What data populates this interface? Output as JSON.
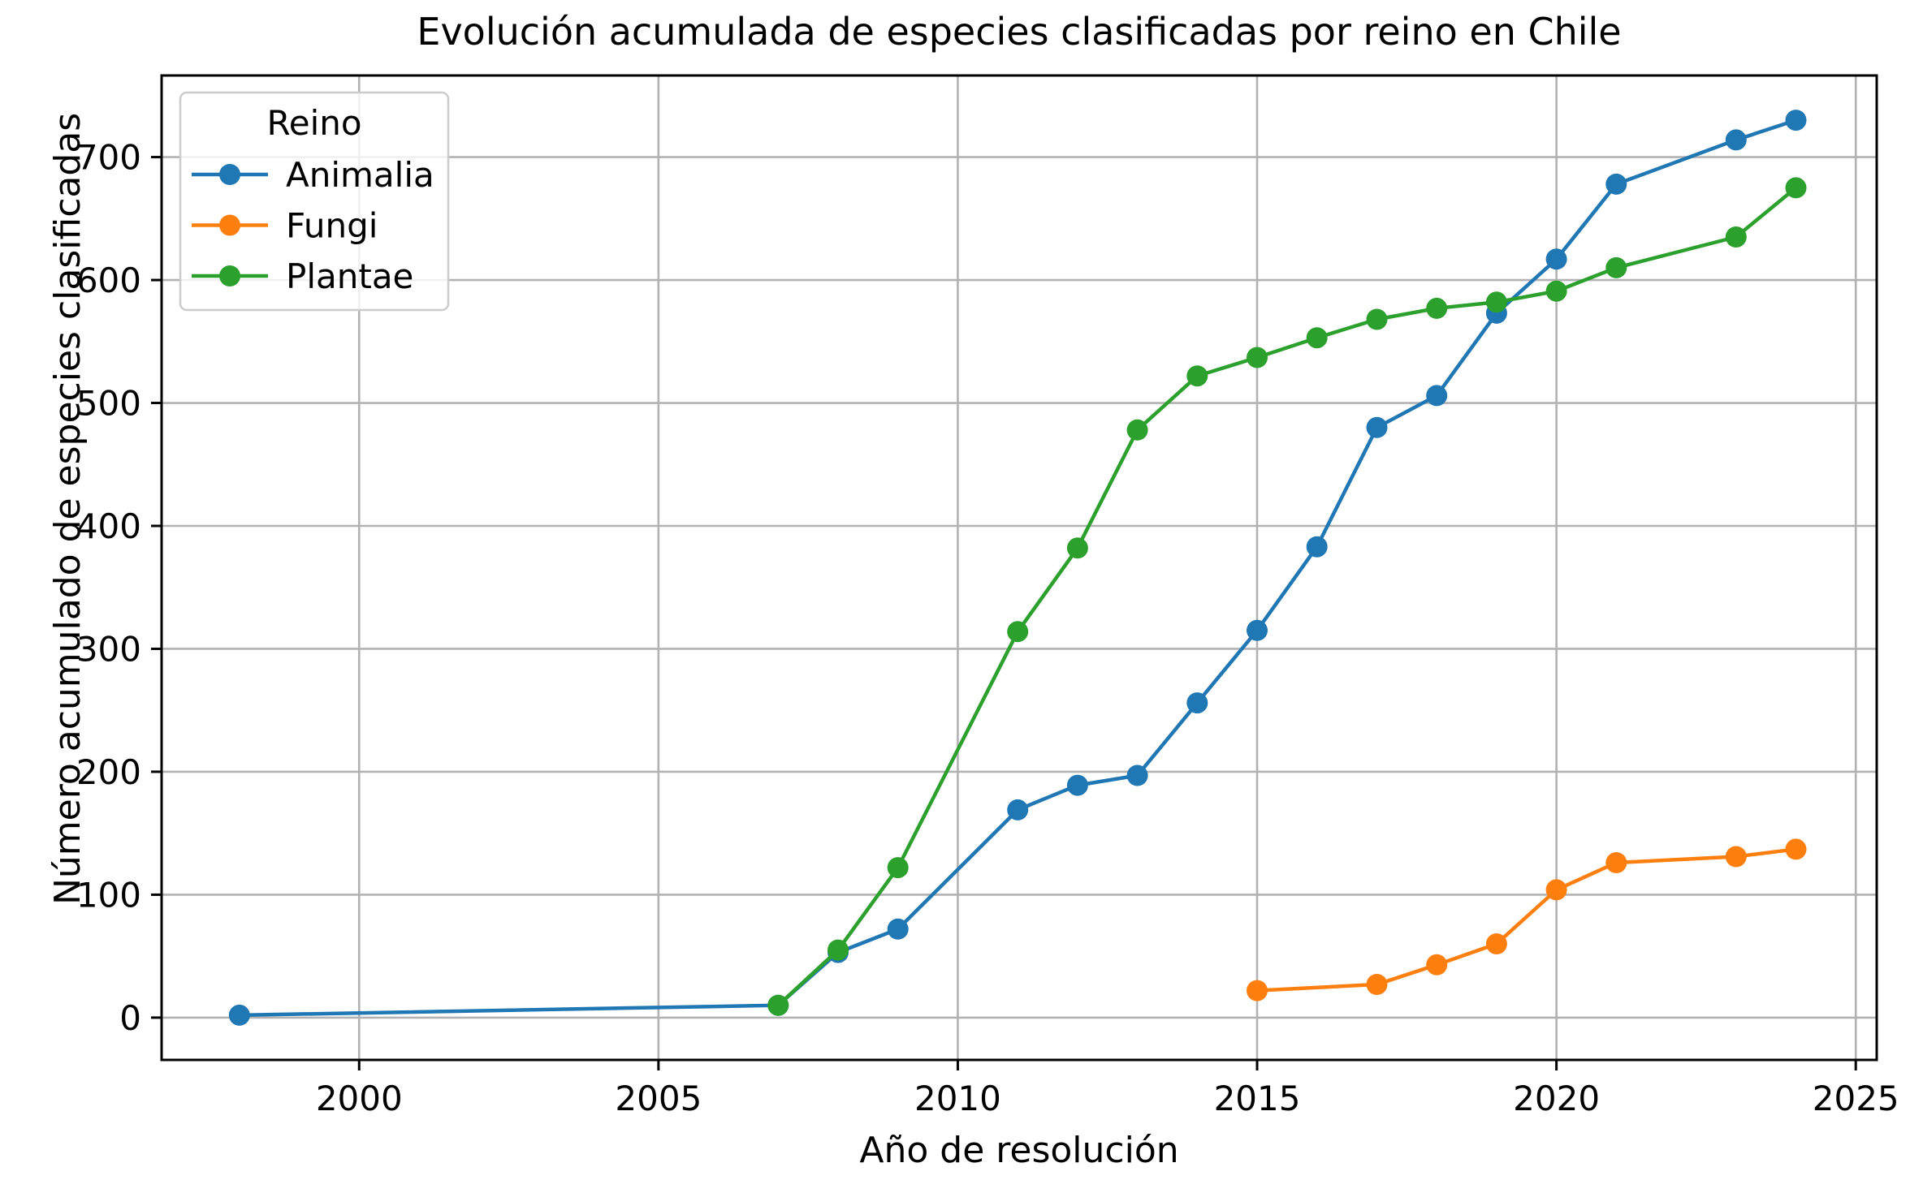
{
  "chart_data": {
    "type": "line",
    "title": "Evolución acumulada de especies clasificadas por reino en Chile",
    "xlabel": "Año de resolución",
    "ylabel": "Número acumulado de especies clasificadas",
    "legend_title": "Reino",
    "legend_position": "upper left",
    "grid": true,
    "grid_color": "#b2b2b2",
    "xlim": [
      1996.7,
      2025.35
    ],
    "ylim": [
      -34.4,
      766.4
    ],
    "x_ticks": [
      2000,
      2005,
      2010,
      2015,
      2020,
      2025
    ],
    "y_ticks": [
      0,
      100,
      200,
      300,
      400,
      500,
      600,
      700
    ],
    "series": [
      {
        "name": "Animalia",
        "color": "#1f77b4",
        "points": [
          [
            1998,
            2
          ],
          [
            2007,
            10
          ],
          [
            2008,
            53
          ],
          [
            2009,
            72
          ],
          [
            2011,
            169
          ],
          [
            2012,
            189
          ],
          [
            2013,
            197
          ],
          [
            2014,
            256
          ],
          [
            2015,
            315
          ],
          [
            2016,
            383
          ],
          [
            2017,
            480
          ],
          [
            2018,
            506
          ],
          [
            2019,
            573
          ],
          [
            2020,
            617
          ],
          [
            2021,
            678
          ],
          [
            2023,
            714
          ],
          [
            2024,
            730
          ]
        ]
      },
      {
        "name": "Fungi",
        "color": "#ff7f0e",
        "points": [
          [
            2015,
            22
          ],
          [
            2017,
            27
          ],
          [
            2018,
            43
          ],
          [
            2019,
            60
          ],
          [
            2020,
            104
          ],
          [
            2021,
            126
          ],
          [
            2023,
            131
          ],
          [
            2024,
            137
          ]
        ]
      },
      {
        "name": "Plantae",
        "color": "#2ca02c",
        "points": [
          [
            2007,
            10
          ],
          [
            2008,
            55
          ],
          [
            2009,
            122
          ],
          [
            2011,
            314
          ],
          [
            2012,
            382
          ],
          [
            2013,
            478
          ],
          [
            2014,
            522
          ],
          [
            2015,
            537
          ],
          [
            2016,
            553
          ],
          [
            2017,
            568
          ],
          [
            2018,
            577
          ],
          [
            2019,
            582
          ],
          [
            2020,
            591
          ],
          [
            2021,
            610
          ],
          [
            2023,
            635
          ],
          [
            2024,
            675
          ]
        ]
      }
    ]
  }
}
